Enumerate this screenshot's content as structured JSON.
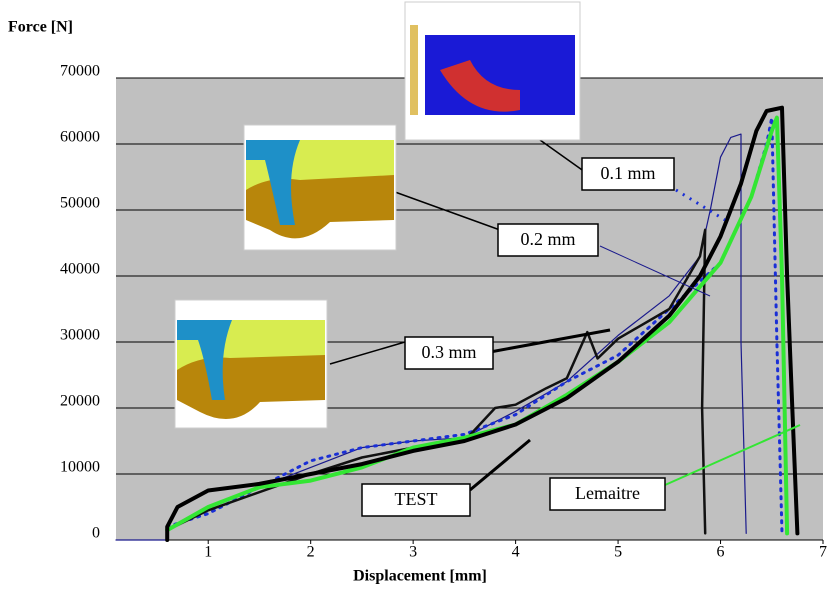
{
  "chart_data": {
    "type": "line",
    "y_label": "Force [N]",
    "x_label": "Displacement [mm]",
    "xlim": [
      0.1,
      7
    ],
    "ylim": [
      0,
      70000
    ],
    "xticks": [
      1,
      2,
      3,
      4,
      5,
      6,
      7
    ],
    "yticks": [
      0,
      10000,
      20000,
      30000,
      40000,
      50000,
      60000,
      70000
    ],
    "grid": true,
    "series": [
      {
        "name": "0.2 mm",
        "color": "#1a1a8c",
        "width": 1.2,
        "dash": "none",
        "x": [
          0.1,
          0.6,
          0.6,
          1,
          2,
          2.5,
          3,
          3.5,
          4,
          4.5,
          5,
          5.5,
          5.8,
          5.9,
          6,
          6.1,
          6.2,
          6.2,
          6.25
        ],
        "values": [
          0,
          0,
          1500,
          5000,
          11000,
          14000,
          15000,
          15500,
          19500,
          24000,
          31000,
          37000,
          43000,
          50000,
          58000,
          61000,
          61500,
          30000,
          1000
        ]
      },
      {
        "name": "0.1 mm",
        "color": "#1a2fd6",
        "width": 3,
        "dash": "2 6",
        "x": [
          0.6,
          1,
          1.5,
          2,
          2.5,
          3,
          3.5,
          4,
          4.5,
          5,
          5.5,
          6,
          6.3,
          6.45,
          6.5,
          6.55,
          6.6
        ],
        "values": [
          2000,
          4000,
          8000,
          12000,
          14000,
          15000,
          16000,
          19000,
          24000,
          28000,
          35000,
          42000,
          52000,
          60000,
          64000,
          30000,
          1000
        ]
      },
      {
        "name": "0.3 mm",
        "color": "#111111",
        "width": 2.5,
        "dash": "none",
        "x": [
          0.6,
          1,
          2,
          2.5,
          3,
          3.5,
          3.8,
          4,
          4.3,
          4.5,
          4.7,
          4.8,
          5,
          5.5,
          5.8,
          5.85,
          5.82,
          5.85
        ],
        "values": [
          1500,
          4500,
          10000,
          12500,
          14000,
          15000,
          20000,
          20500,
          23000,
          24500,
          31500,
          27500,
          30500,
          35000,
          43000,
          47000,
          20000,
          1000
        ]
      },
      {
        "name": "Lemaitre",
        "color": "#33e633",
        "width": 4,
        "dash": "none",
        "x": [
          0.6,
          1,
          1.5,
          2,
          2.5,
          3,
          3.5,
          4,
          4.5,
          5,
          5.5,
          6,
          6.3,
          6.5,
          6.55,
          6.6,
          6.65
        ],
        "values": [
          1500,
          5000,
          8000,
          9000,
          11000,
          14000,
          15500,
          17500,
          22000,
          27000,
          33000,
          42000,
          52000,
          62000,
          64000,
          40000,
          1000
        ]
      },
      {
        "name": "TEST",
        "color": "#000000",
        "width": 4,
        "dash": "none",
        "x": [
          0.6,
          0.6,
          0.7,
          1,
          1.5,
          2,
          2.5,
          3,
          3.5,
          4,
          4.5,
          5,
          5.5,
          5.8,
          6,
          6.2,
          6.35,
          6.45,
          6.6,
          6.65,
          6.7,
          6.75
        ],
        "values": [
          0,
          2000,
          5000,
          7500,
          8500,
          10000,
          11500,
          13500,
          15000,
          17500,
          21500,
          27000,
          34000,
          40000,
          46000,
          54000,
          62000,
          65000,
          65500,
          40000,
          20000,
          1000
        ]
      }
    ]
  }
}
